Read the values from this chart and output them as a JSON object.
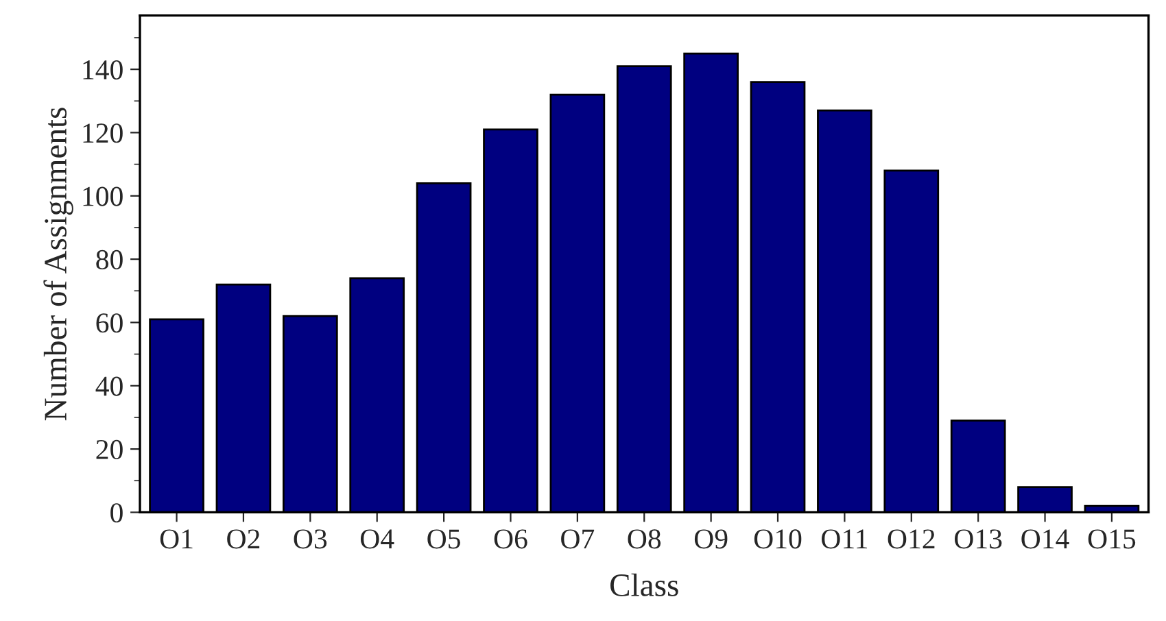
{
  "chart_data": {
    "type": "bar",
    "xlabel": "Class",
    "ylabel": "Number of Assignments",
    "categories": [
      "O1",
      "O2",
      "O3",
      "O4",
      "O5",
      "O6",
      "O7",
      "O8",
      "O9",
      "O10",
      "O11",
      "O12",
      "O13",
      "O14",
      "O15"
    ],
    "values": [
      61,
      72,
      62,
      74,
      104,
      121,
      132,
      141,
      145,
      136,
      127,
      108,
      29,
      8,
      2
    ],
    "color": "#000080",
    "ylim": [
      0,
      157
    ],
    "yticks": [
      0,
      20,
      40,
      60,
      80,
      100,
      120,
      140
    ],
    "grid": false,
    "legend": false
  }
}
